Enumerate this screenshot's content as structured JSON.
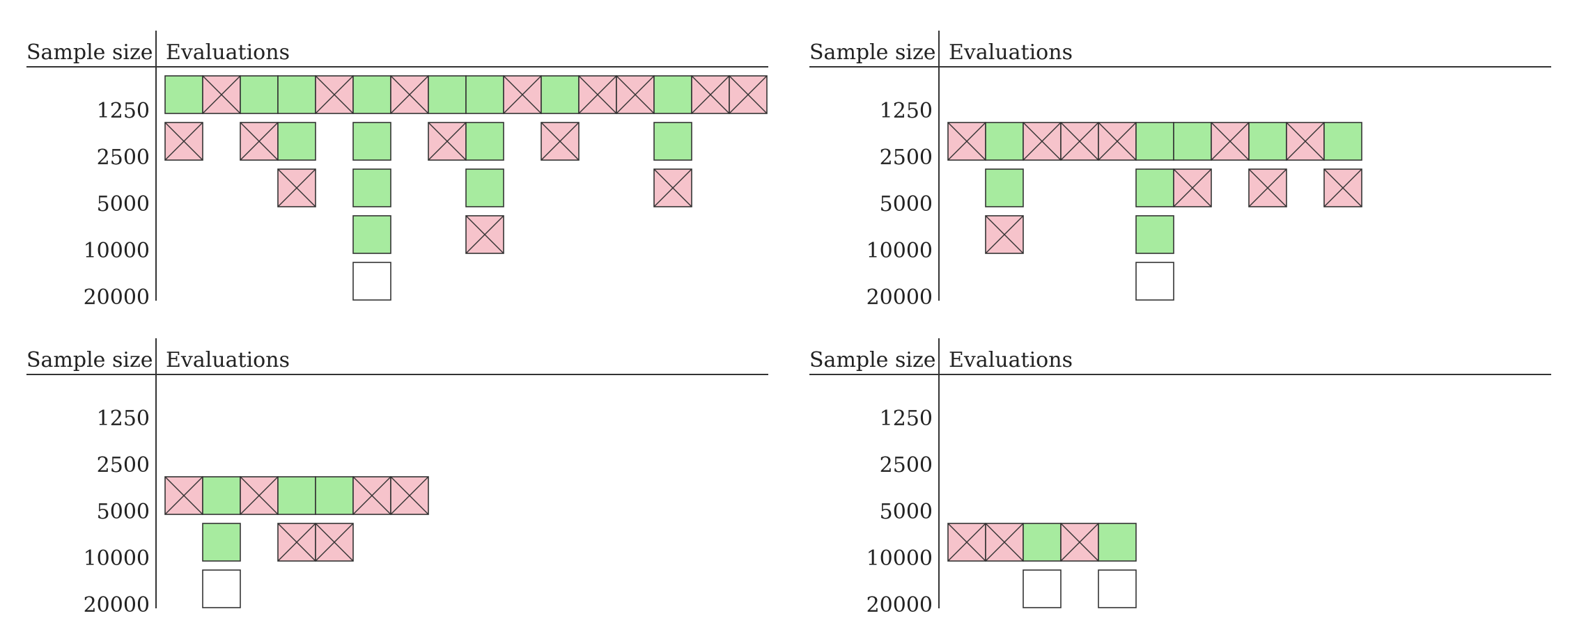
{
  "header": {
    "sample_size": "Sample size",
    "evaluations": "Evaluations"
  },
  "colors": {
    "pass": "#a7eb9f",
    "fail": "#f6c3cb",
    "pending": "#ffffff",
    "outline": "#333333"
  },
  "legend_semantics": {
    "g": "green square",
    "x": "pink square with a cross",
    "e": "empty square"
  },
  "panels": [
    {
      "sample_sizes": [
        "1250",
        "2500",
        "5000",
        "10000",
        "20000"
      ],
      "rows": [
        [
          "g",
          "x",
          "g",
          "g",
          "x",
          "g",
          "x",
          "g",
          "g",
          "x",
          "g",
          "x",
          "x",
          "g",
          "x",
          "x"
        ],
        [
          "x",
          "",
          "x",
          "g",
          "",
          "g",
          "",
          "x",
          "g",
          "",
          "x",
          "",
          "",
          "g"
        ],
        [
          "",
          "",
          "",
          "x",
          "",
          "g",
          "",
          "",
          "g",
          "",
          "",
          "",
          "",
          "x"
        ],
        [
          "",
          "",
          "",
          "",
          "",
          "g",
          "",
          "",
          "x"
        ],
        [
          "",
          "",
          "",
          "",
          "",
          "e"
        ]
      ]
    },
    {
      "sample_sizes": [
        "1250",
        "2500",
        "5000",
        "10000",
        "20000"
      ],
      "rows": [
        [],
        [
          "x",
          "g",
          "x",
          "x",
          "x",
          "g",
          "g",
          "x",
          "g",
          "x",
          "g"
        ],
        [
          "",
          "g",
          "",
          "",
          "",
          "g",
          "x",
          "",
          "x",
          "",
          "x"
        ],
        [
          "",
          "x",
          "",
          "",
          "",
          "g"
        ],
        [
          "",
          "",
          "",
          "",
          "",
          "e"
        ]
      ]
    },
    {
      "sample_sizes": [
        "1250",
        "2500",
        "5000",
        "10000",
        "20000"
      ],
      "rows": [
        [],
        [],
        [
          "x",
          "g",
          "x",
          "g",
          "g",
          "x",
          "x"
        ],
        [
          "",
          "g",
          "",
          "x",
          "x"
        ],
        [
          "",
          "e"
        ]
      ]
    },
    {
      "sample_sizes": [
        "1250",
        "2500",
        "5000",
        "10000",
        "20000"
      ],
      "rows": [
        [],
        [],
        [],
        [
          "x",
          "x",
          "g",
          "x",
          "g"
        ],
        [
          "",
          "",
          "e",
          "",
          "e"
        ]
      ]
    }
  ]
}
